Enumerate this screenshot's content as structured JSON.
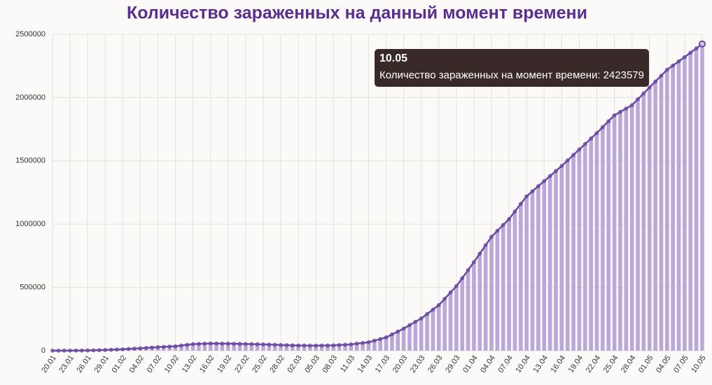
{
  "chart_data": {
    "type": "bar-line",
    "title": "Количество зараженных на данный момент времени",
    "categories": [
      "20.01",
      null,
      null,
      "23.01",
      null,
      null,
      "26.01",
      null,
      null,
      "29.01",
      null,
      null,
      "01.02",
      null,
      null,
      "04.02",
      null,
      null,
      "07.02",
      null,
      null,
      "10.02",
      null,
      null,
      "13.02",
      null,
      null,
      "16.02",
      null,
      null,
      "19.02",
      null,
      null,
      "22.02",
      null,
      null,
      "25.02",
      null,
      null,
      "28.02",
      null,
      null,
      "02.03",
      null,
      null,
      "05.03",
      null,
      null,
      "08.03",
      null,
      null,
      "11.03",
      null,
      null,
      "14.03",
      null,
      null,
      "17.03",
      null,
      null,
      "20.03",
      null,
      null,
      "23.03",
      null,
      null,
      "26.03",
      null,
      null,
      "29.03",
      null,
      null,
      "01.04",
      null,
      null,
      "04.04",
      null,
      null,
      "07.04",
      null,
      null,
      "10.04",
      null,
      null,
      "13.04",
      null,
      null,
      "16.04",
      null,
      null,
      "19.04",
      null,
      null,
      "22.04",
      null,
      null,
      "25.04",
      null,
      null,
      "28.04",
      null,
      null,
      "01.05",
      null,
      null,
      "04.05",
      null,
      null,
      "07.05",
      null,
      null,
      "10.05"
    ],
    "values": [
      300,
      400,
      500,
      600,
      1100,
      1500,
      2000,
      3200,
      4300,
      5500,
      7300,
      9200,
      11000,
      13700,
      16300,
      19000,
      22000,
      25000,
      28000,
      30300,
      32700,
      35000,
      40700,
      46300,
      52000,
      53700,
      55300,
      57000,
      56700,
      56300,
      56000,
      55000,
      54000,
      53000,
      52000,
      51000,
      50000,
      48300,
      46700,
      45000,
      43700,
      42300,
      41000,
      40700,
      40300,
      40000,
      40700,
      41300,
      42000,
      44700,
      47300,
      50000,
      55700,
      61300,
      67000,
      79700,
      92300,
      105000,
      128300,
      151700,
      175000,
      201700,
      228300,
      255000,
      290000,
      325000,
      360000,
      410000,
      460000,
      510000,
      573300,
      636700,
      700000,
      766700,
      833300,
      900000,
      946700,
      993300,
      1040000,
      1100000,
      1160000,
      1220000,
      1260000,
      1300000,
      1340000,
      1380000,
      1420000,
      1460000,
      1503300,
      1546700,
      1590000,
      1633300,
      1676700,
      1720000,
      1766700,
      1813300,
      1860000,
      1886700,
      1913300,
      1940000,
      1986700,
      2033300,
      2080000,
      2126700,
      2173300,
      2220000,
      2253300,
      2286700,
      2320000,
      2354500,
      2389000,
      2423579
    ],
    "bar_color": "#b9a8d8",
    "line_color": "#6b4aa3",
    "ylim": [
      0,
      2500000
    ],
    "yticks": [
      0,
      500000,
      1000000,
      1500000,
      2000000,
      2500000
    ],
    "grid": true,
    "tooltip_label": "Количество зараженных на момент времени:"
  }
}
